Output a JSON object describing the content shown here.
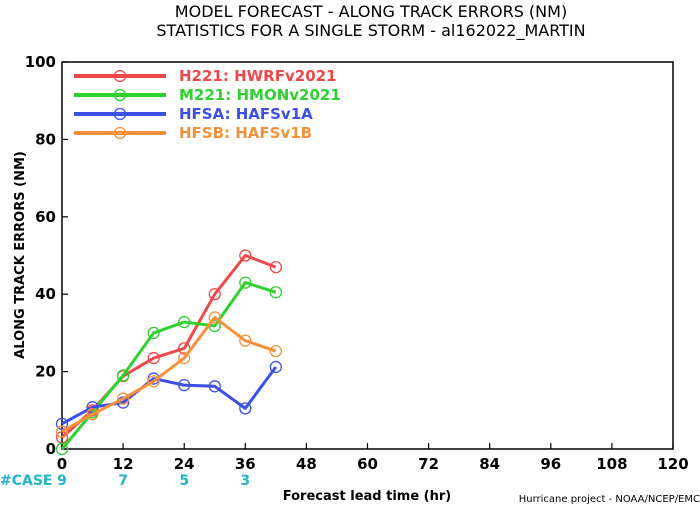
{
  "chart_data": {
    "type": "line",
    "title": "MODEL FORECAST - ALONG TRACK ERRORS (NM)",
    "subtitle": "STATISTICS FOR A SINGLE STORM - al162022_MARTIN",
    "xlabel": "Forecast lead time (hr)",
    "ylabel": "ALONG TRACK ERRORS (NM)",
    "xlim": [
      0,
      120
    ],
    "ylim": [
      0,
      100
    ],
    "x_ticks": [
      0,
      12,
      24,
      36,
      48,
      60,
      72,
      84,
      96,
      108,
      120
    ],
    "y_ticks": [
      0,
      20,
      40,
      60,
      80,
      100
    ],
    "legend_position": "top-left",
    "series": [
      {
        "name": "H221: HWRFv2021",
        "color": "#f04848",
        "x": [
          0,
          6,
          12,
          18,
          24,
          30,
          36,
          42
        ],
        "y": [
          3,
          10,
          18.8,
          23.5,
          26,
          40,
          50,
          47
        ]
      },
      {
        "name": "M221: HMONv2021",
        "color": "#2ed12e",
        "x": [
          0,
          6,
          12,
          18,
          24,
          30,
          36,
          42
        ],
        "y": [
          0,
          9.5,
          19,
          30,
          32.8,
          31.8,
          43,
          40.5
        ]
      },
      {
        "name": "HFSA: HAFSv1A",
        "color": "#3c50e6",
        "x": [
          0,
          6,
          12,
          18,
          24,
          30,
          36,
          42
        ],
        "y": [
          6.5,
          10.8,
          12,
          18.2,
          16.5,
          16.2,
          10.5,
          21.2
        ]
      },
      {
        "name": "HFSB: HAFSv1B",
        "color": "#f5913a",
        "x": [
          0,
          6,
          12,
          18,
          24,
          30,
          36,
          42
        ],
        "y": [
          4.5,
          9,
          13,
          17.5,
          23.5,
          34,
          28,
          25.3
        ]
      }
    ],
    "case_label": "#CASE",
    "cases": [
      {
        "x": 0,
        "n": "9"
      },
      {
        "x": 12,
        "n": "7"
      },
      {
        "x": 24,
        "n": "5"
      },
      {
        "x": 36,
        "n": "3"
      }
    ],
    "case_color": "#22b5c8",
    "credit": "Hurricane project - NOAA/NCEP/EMC"
  }
}
